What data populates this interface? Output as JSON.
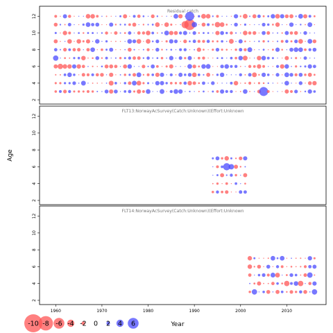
{
  "chart_data": {
    "type": "scatter",
    "encoding": "bubble residual plot",
    "ylabel": "Age",
    "xlabel": "Year",
    "x_ticks": [
      1960,
      1970,
      1980,
      1990,
      2000,
      2010
    ],
    "y_ticks": [
      2,
      4,
      6,
      8,
      10,
      12
    ],
    "xlim": [
      1956.5,
      2018.5
    ],
    "ylim": [
      1.5,
      13.2
    ],
    "grid": false,
    "positive_color": "#4b4bff",
    "negative_color": "#ff5555",
    "panels": [
      {
        "title": "Residual catch",
        "years": [
          1960,
          2016
        ],
        "ages": [
          3,
          12
        ],
        "seed": 11,
        "highlights": [
          {
            "x": 1989,
            "y": 12,
            "v": 5
          },
          {
            "x": 1989,
            "y": 11,
            "v": -6
          },
          {
            "x": 1988,
            "y": 11,
            "v": -4
          },
          {
            "x": 1990,
            "y": 11,
            "v": 3
          },
          {
            "x": 2005,
            "y": 3,
            "v": 5
          },
          {
            "x": 1960,
            "y": 7,
            "v": 3
          },
          {
            "x": 1961,
            "y": 6,
            "v": -3
          },
          {
            "x": 1995,
            "y": 11,
            "v": -3
          }
        ]
      },
      {
        "title": "FLT13:NorwayAcSurvey(Catch:Unknown)(Effort:Unknown",
        "years": [
          1994,
          2001
        ],
        "ages": [
          3,
          7
        ],
        "seed": 23,
        "highlights": [
          {
            "x": 1997,
            "y": 6,
            "v": 4
          },
          {
            "x": 1998,
            "y": 6,
            "v": 3
          },
          {
            "x": 1997,
            "y": 3,
            "v": -2
          }
        ]
      },
      {
        "title": "FLT14:NorwayAcSurvey(Catch:Unknown)(Effort:Unknown",
        "years": [
          2002,
          2016
        ],
        "ages": [
          3,
          7
        ],
        "seed": 37,
        "highlights": [
          {
            "x": 2010,
            "y": 4,
            "v": -3
          },
          {
            "x": 2015,
            "y": 5,
            "v": 3
          },
          {
            "x": 2013,
            "y": 4,
            "v": -3
          },
          {
            "x": 2016,
            "y": 3,
            "v": 3
          },
          {
            "x": 2003,
            "y": 3,
            "v": 3
          }
        ]
      }
    ],
    "legend": {
      "placement": "bottom-left",
      "values": [
        -10,
        -8,
        -6,
        -4,
        -2,
        0,
        2,
        4,
        6
      ],
      "labels": [
        "-10",
        "-8",
        "-6",
        "-4",
        "-2",
        "0",
        "2",
        "4",
        "6"
      ]
    }
  }
}
